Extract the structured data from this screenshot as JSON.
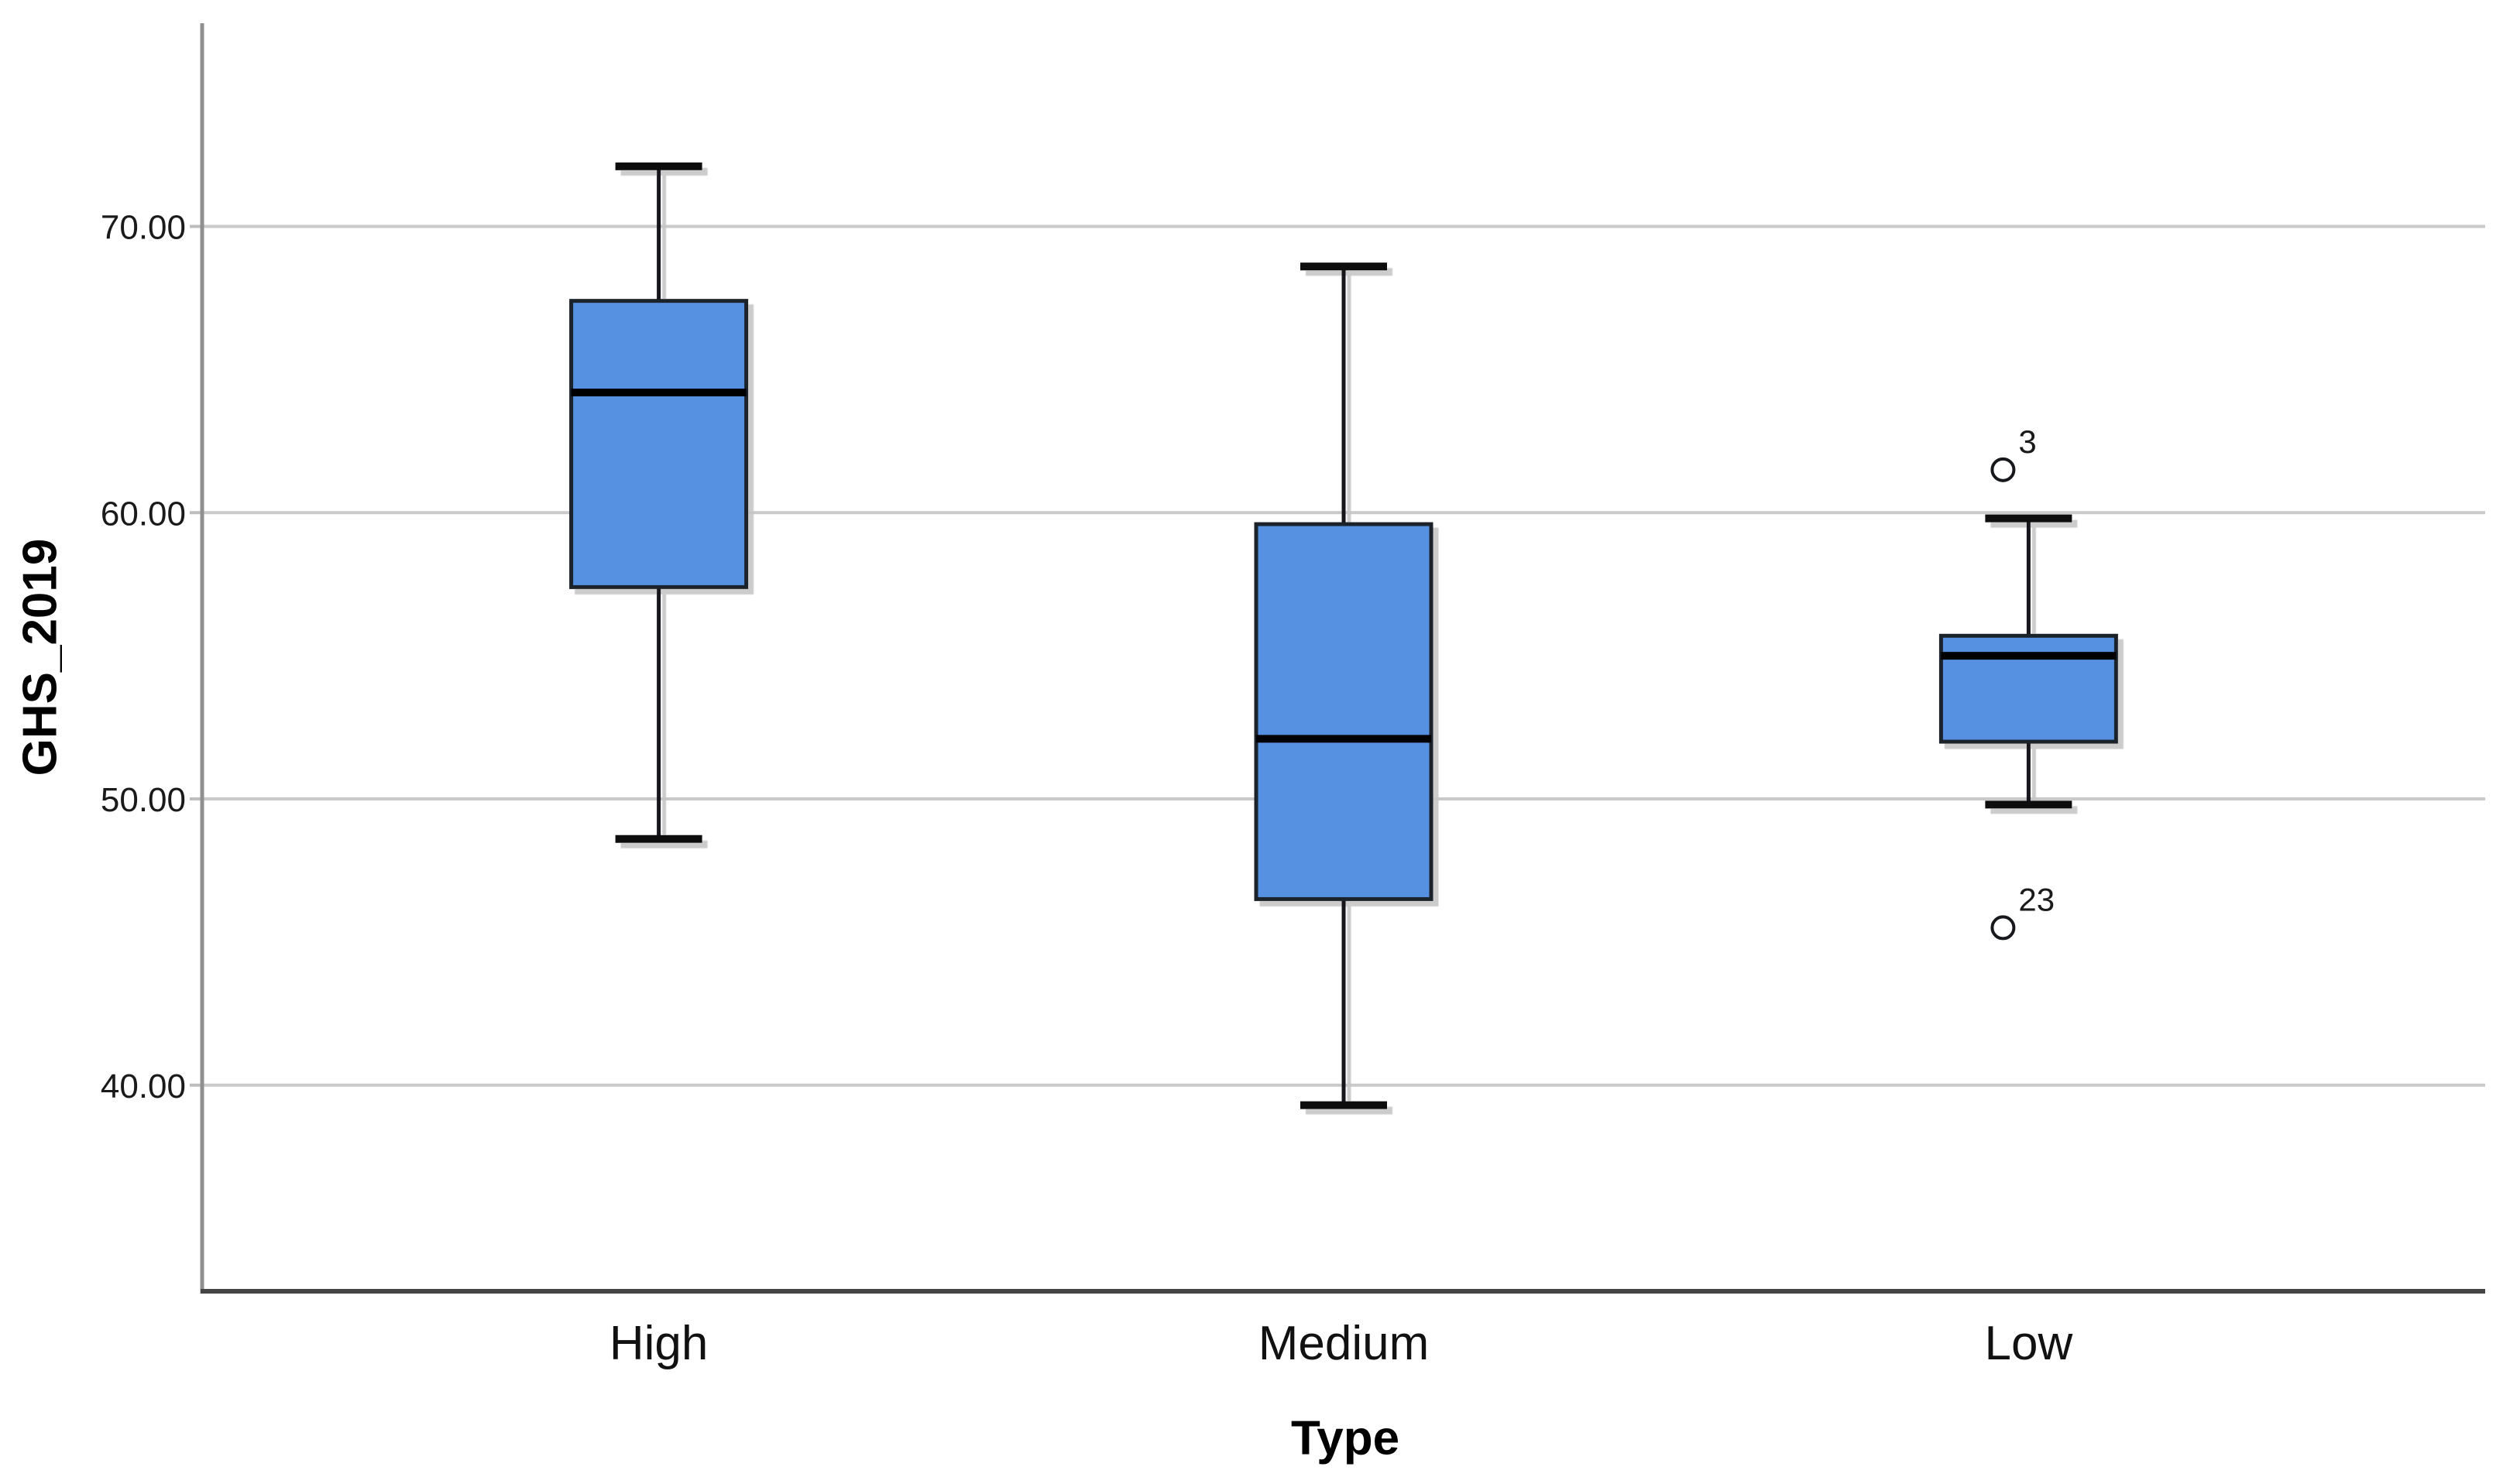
{
  "chart_data": {
    "type": "boxplot",
    "title": "",
    "xlabel": "Type",
    "ylabel": "GHS_2019",
    "categories": [
      "High",
      "Medium",
      "Low"
    ],
    "ylim": [
      32.8,
      77.1
    ],
    "grid": "horizontal",
    "legend": "none",
    "y_ticks": [
      {
        "value": 40,
        "label": "40.00"
      },
      {
        "value": 50,
        "label": "50.00"
      },
      {
        "value": 60,
        "label": "60.00"
      },
      {
        "value": 70,
        "label": "70.00"
      }
    ],
    "series": [
      {
        "category": "High",
        "whisker_low": 48.6,
        "q1": 57.4,
        "median": 64.2,
        "q3": 67.4,
        "whisker_high": 72.1,
        "outliers": []
      },
      {
        "category": "Medium",
        "whisker_low": 39.3,
        "q1": 46.5,
        "median": 52.1,
        "q3": 59.6,
        "whisker_high": 68.6,
        "outliers": []
      },
      {
        "category": "Low",
        "whisker_low": 49.8,
        "q1": 52.0,
        "median": 55.0,
        "q3": 55.7,
        "whisker_high": 59.8,
        "outliers": [
          {
            "value": 61.5,
            "label": "3"
          },
          {
            "value": 45.5,
            "label": "23"
          }
        ]
      }
    ],
    "colors": {
      "box_fill": "#5591e0",
      "box_border": "#1c2029",
      "median": "#000000",
      "whisker": "#15181d",
      "gridline": "#c9c9c9",
      "tick": "#bdbdbd",
      "y_axis": "#8f8f8f",
      "x_axis": "#454545",
      "text": "#1a1a1a",
      "shadow": "#c6c6c6"
    }
  }
}
